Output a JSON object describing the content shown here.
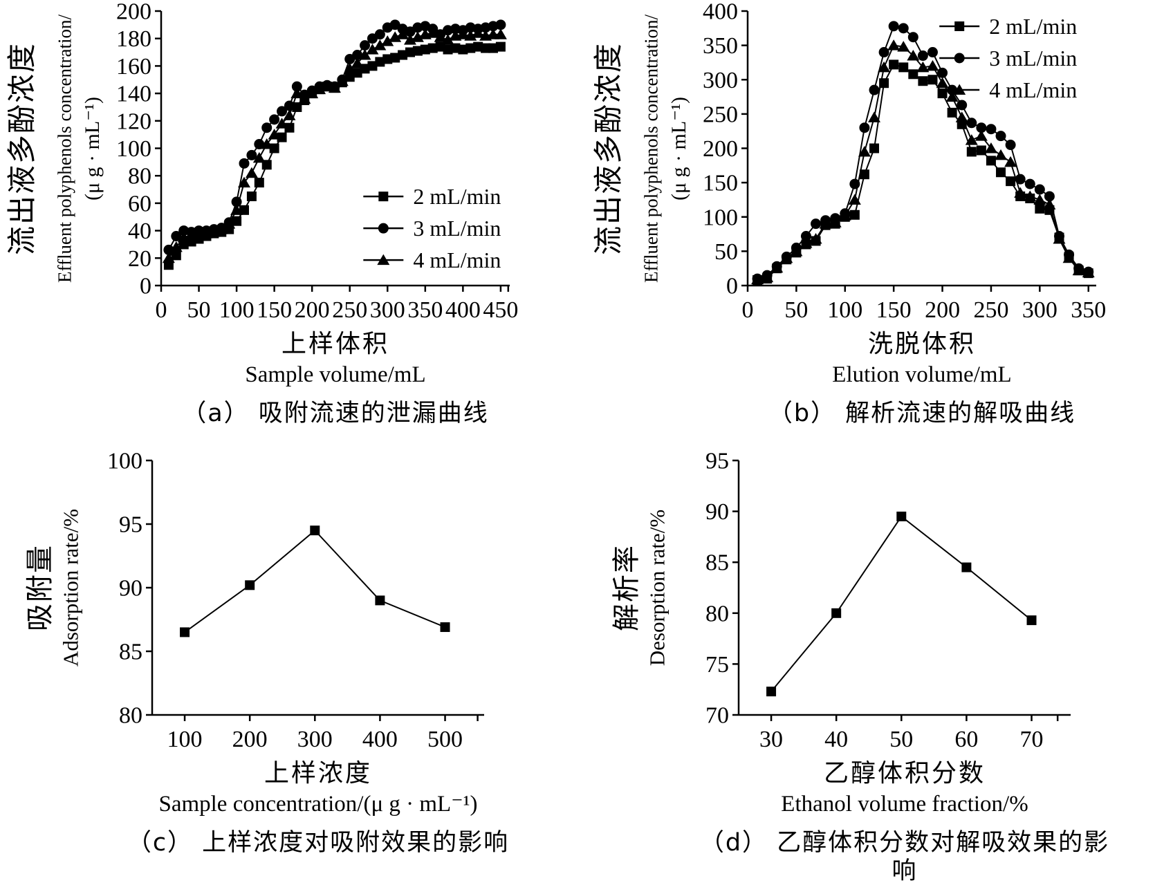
{
  "figure": {
    "background": "#ffffff",
    "ink": "#000000",
    "description_visible_panels": [
      "a",
      "b",
      "c",
      "d"
    ]
  },
  "chart_data": [
    {
      "id": "a",
      "type": "line",
      "caption": "（a） 吸附流速的泄漏曲线",
      "xlabel_zh": "上样体积",
      "xlabel_en": "Sample volume/mL",
      "ylabel_zh": "流出液多酚浓度",
      "ylabel_en1": "Effluent polyphenols concentration/",
      "ylabel_en2": "(μ g · mL⁻¹)",
      "xlim": [
        0,
        462
      ],
      "ylim": [
        0,
        200
      ],
      "xticks": [
        0,
        50,
        100,
        150,
        200,
        250,
        300,
        350,
        400,
        450
      ],
      "xticks_minor": [
        460
      ],
      "yticks": [
        0,
        20,
        40,
        60,
        80,
        100,
        120,
        140,
        160,
        180,
        200
      ],
      "grid": false,
      "x": [
        10,
        20,
        30,
        40,
        50,
        60,
        70,
        80,
        90,
        100,
        110,
        120,
        130,
        140,
        150,
        160,
        170,
        180,
        190,
        200,
        210,
        220,
        230,
        240,
        250,
        260,
        270,
        280,
        290,
        300,
        310,
        320,
        330,
        340,
        350,
        360,
        370,
        380,
        390,
        400,
        410,
        420,
        430,
        440,
        450
      ],
      "series": [
        {
          "name": "2 mL/min",
          "marker": "square",
          "values": [
            15,
            22,
            30,
            32,
            34,
            36,
            38,
            39,
            41,
            47,
            55,
            65,
            75,
            88,
            100,
            108,
            115,
            130,
            135,
            140,
            143,
            145,
            144,
            148,
            152,
            155,
            158,
            160,
            163,
            165,
            166,
            168,
            170,
            171,
            172,
            173,
            174,
            172,
            173,
            172,
            173,
            174,
            173,
            173,
            174
          ]
        },
        {
          "name": "3 mL/min",
          "marker": "circle",
          "values": [
            26,
            36,
            40,
            39,
            40,
            40,
            41,
            42,
            46,
            61,
            89,
            95,
            103,
            115,
            121,
            127,
            131,
            145,
            139,
            142,
            145,
            146,
            145,
            150,
            165,
            168,
            175,
            180,
            183,
            188,
            190,
            187,
            185,
            188,
            189,
            187,
            183,
            186,
            187,
            186,
            188,
            187,
            188,
            189,
            190
          ]
        },
        {
          "name": "4 mL/min",
          "marker": "triangle",
          "values": [
            20,
            28,
            35,
            37,
            38,
            38,
            39,
            41,
            45,
            55,
            75,
            82,
            93,
            103,
            110,
            118,
            124,
            140,
            136,
            140,
            143,
            145,
            144,
            149,
            158,
            162,
            168,
            172,
            175,
            178,
            181,
            183,
            179,
            181,
            183,
            184,
            181,
            179,
            182,
            183,
            182,
            184,
            182,
            183,
            183
          ]
        }
      ],
      "legend": {
        "position": [
          0.58,
          0.62
        ],
        "items": [
          "2 mL/min",
          "3 mL/min",
          "4 mL/min"
        ]
      }
    },
    {
      "id": "b",
      "type": "line",
      "caption": "（b） 解析流速的解吸曲线",
      "xlabel_zh": "洗脱体积",
      "xlabel_en": "Elution volume/mL",
      "ylabel_zh": "流出液多酚浓度",
      "ylabel_en1": "Effluent polyphenols concentration/",
      "ylabel_en2": "(μ g · mL⁻¹)",
      "xlim": [
        0,
        358
      ],
      "ylim": [
        0,
        400
      ],
      "xticks": [
        0,
        50,
        100,
        150,
        200,
        250,
        300,
        350
      ],
      "xticks_minor": [],
      "yticks": [
        0,
        50,
        100,
        150,
        200,
        250,
        300,
        350,
        400
      ],
      "grid": false,
      "x": [
        10,
        20,
        30,
        40,
        50,
        60,
        70,
        80,
        90,
        100,
        110,
        120,
        130,
        140,
        150,
        160,
        170,
        180,
        190,
        200,
        210,
        220,
        230,
        240,
        250,
        260,
        270,
        280,
        290,
        300,
        310,
        320,
        330,
        340,
        350
      ],
      "series": [
        {
          "name": "2 mL/min",
          "marker": "square",
          "values": [
            8,
            10,
            25,
            38,
            48,
            60,
            65,
            88,
            90,
            100,
            103,
            162,
            200,
            295,
            322,
            318,
            308,
            298,
            300,
            280,
            252,
            235,
            195,
            197,
            182,
            165,
            152,
            130,
            127,
            112,
            110,
            70,
            42,
            22,
            18
          ]
        },
        {
          "name": "3 mL/min",
          "marker": "circle",
          "values": [
            10,
            15,
            28,
            42,
            55,
            72,
            90,
            95,
            98,
            105,
            148,
            230,
            285,
            340,
            378,
            375,
            362,
            335,
            340,
            310,
            285,
            263,
            237,
            230,
            228,
            218,
            205,
            155,
            148,
            140,
            130,
            72,
            45,
            25,
            20
          ]
        },
        {
          "name": "4 mL/min",
          "marker": "triangle",
          "values": [
            9,
            12,
            26,
            40,
            50,
            62,
            68,
            90,
            92,
            102,
            125,
            195,
            245,
            318,
            350,
            348,
            335,
            318,
            320,
            295,
            275,
            245,
            212,
            218,
            200,
            190,
            180,
            135,
            130,
            125,
            118,
            68,
            40,
            22,
            19
          ]
        }
      ],
      "legend": {
        "position": [
          0.55,
          0.0
        ],
        "items": [
          "2 mL/min",
          "3 mL/min",
          "4 mL/min"
        ]
      }
    },
    {
      "id": "c",
      "type": "line",
      "caption": "（c） 上样浓度对吸附效果的影响",
      "xlabel_zh": "上样浓度",
      "xlabel_en": "Sample concentration/(μ g · mL⁻¹)",
      "ylabel_zh": "吸附量",
      "ylabel_en1": "Adsorption rate/%",
      "xlim": [
        50,
        560
      ],
      "ylim": [
        80,
        100
      ],
      "xticks": [
        100,
        200,
        300,
        400,
        500
      ],
      "xticks_minor": [
        550
      ],
      "yticks": [
        80,
        85,
        90,
        95,
        100
      ],
      "grid": false,
      "x": [
        100,
        200,
        300,
        400,
        500
      ],
      "series": [
        {
          "marker": "square",
          "values": [
            86.5,
            90.2,
            94.5,
            89.0,
            86.9
          ]
        }
      ]
    },
    {
      "id": "d",
      "type": "line",
      "caption": "（d） 乙醇体积分数对解吸效果的影响",
      "xlabel_zh": "乙醇体积分数",
      "xlabel_en": "Ethanol volume fraction/%",
      "ylabel_zh": "解析率",
      "ylabel_en1": "Desorption rate/%",
      "xlim": [
        25,
        76
      ],
      "ylim": [
        70,
        95
      ],
      "xticks": [
        30,
        40,
        50,
        60,
        70
      ],
      "xticks_minor": [
        74
      ],
      "yticks": [
        70,
        75,
        80,
        85,
        90,
        95
      ],
      "grid": false,
      "x": [
        30,
        40,
        50,
        60,
        70
      ],
      "series": [
        {
          "marker": "square",
          "values": [
            72.3,
            80.0,
            89.5,
            84.5,
            79.3
          ]
        }
      ]
    }
  ]
}
